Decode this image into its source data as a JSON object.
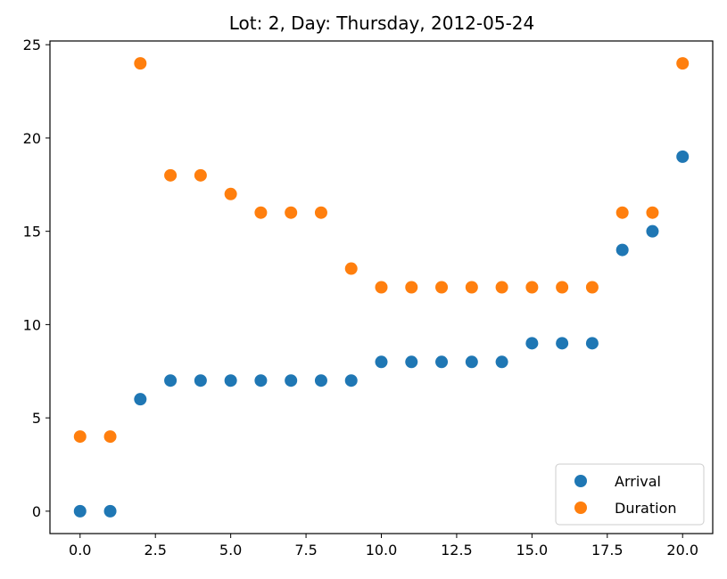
{
  "chart_data": {
    "type": "scatter",
    "title": "Lot: 2, Day: Thursday, 2012-05-24",
    "xlabel": "",
    "ylabel": "",
    "xlim": [
      -1.0,
      21.0
    ],
    "ylim": [
      -1.2,
      25.2
    ],
    "x_ticks": [
      "0.0",
      "2.5",
      "5.0",
      "7.5",
      "10.0",
      "12.5",
      "15.0",
      "17.5",
      "20.0"
    ],
    "x_tick_values": [
      0,
      2.5,
      5,
      7.5,
      10,
      12.5,
      15,
      17.5,
      20
    ],
    "y_ticks": [
      "0",
      "5",
      "10",
      "15",
      "20",
      "25"
    ],
    "y_tick_values": [
      0,
      5,
      10,
      15,
      20,
      25
    ],
    "grid": false,
    "legend_position": "lower-right",
    "x": [
      0,
      1,
      2,
      3,
      4,
      5,
      6,
      7,
      8,
      9,
      10,
      11,
      12,
      13,
      14,
      15,
      16,
      17,
      18,
      19,
      20
    ],
    "series": [
      {
        "name": "Arrival",
        "color": "#1f77b4",
        "values": [
          0,
          0,
          6,
          7,
          7,
          7,
          7,
          7,
          7,
          7,
          8,
          8,
          8,
          8,
          8,
          9,
          9,
          9,
          14,
          15,
          19
        ]
      },
      {
        "name": "Duration",
        "color": "#ff7f0e",
        "values": [
          4,
          4,
          24,
          18,
          18,
          17,
          16,
          16,
          16,
          13,
          12,
          12,
          12,
          12,
          12,
          12,
          12,
          12,
          16,
          16,
          24
        ]
      }
    ]
  }
}
